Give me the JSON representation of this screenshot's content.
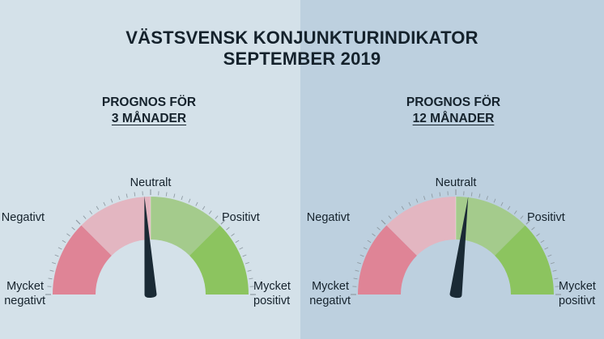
{
  "title_line1": "VÄSTSVENSK KONJUNKTURINDIKATOR",
  "title_line2": "SEPTEMBER 2019",
  "colors": {
    "bg_left": "#d4e1e9",
    "bg_right": "#bdd0df",
    "very_negative": "#df8496",
    "negative": "#e3b6c1",
    "positive": "#a4cb8c",
    "very_positive": "#8cc45f",
    "needle": "#1a2a35"
  },
  "chart_data": [
    {
      "type": "gauge",
      "heading_line1": "PROGNOS FÖR",
      "heading_line2": "3 MÅNADER",
      "scale": [
        -100,
        100
      ],
      "segments": [
        "Mycket negativt",
        "Negativt",
        "Positivt",
        "Mycket positivt"
      ],
      "labels": {
        "very_negative": [
          "Mycket",
          "negativt"
        ],
        "negative": "Negativt",
        "neutral": "Neutralt",
        "positive": "Positivt",
        "very_positive": [
          "Mycket",
          "positivt"
        ]
      },
      "value": -4
    },
    {
      "type": "gauge",
      "heading_line1": "PROGNOS FÖR",
      "heading_line2": "12 MÅNADER",
      "scale": [
        -100,
        100
      ],
      "segments": [
        "Mycket negativt",
        "Negativt",
        "Positivt",
        "Mycket positivt"
      ],
      "labels": {
        "very_negative": [
          "Mycket",
          "negativt"
        ],
        "negative": "Negativt",
        "neutral": "Neutralt",
        "positive": "Positivt",
        "very_positive": [
          "Mycket",
          "positivt"
        ]
      },
      "value": 8
    }
  ]
}
